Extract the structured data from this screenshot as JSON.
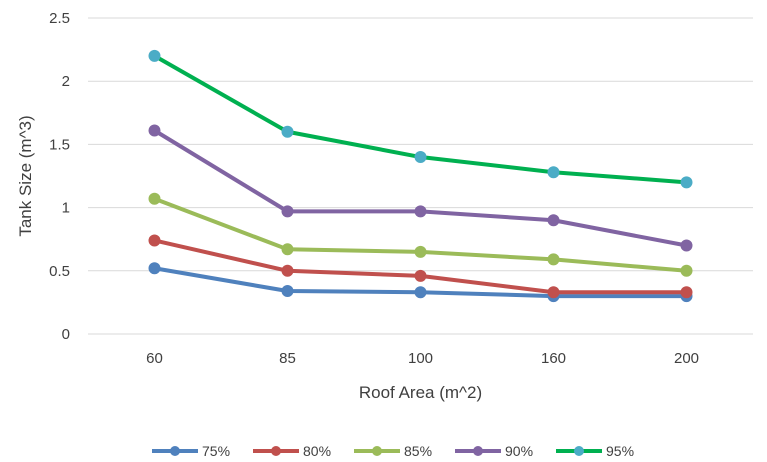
{
  "chart_data": {
    "type": "line",
    "title": "",
    "xlabel": "Roof Area (m^2)",
    "ylabel": "Tank Size (m^3)",
    "categories": [
      "60",
      "85",
      "100",
      "160",
      "200"
    ],
    "ylim": [
      0,
      2.5
    ],
    "yticks": [
      "0",
      "0.5",
      "1",
      "1.5",
      "2",
      "2.5"
    ],
    "grid": "horizontal",
    "legend_position": "bottom",
    "series": [
      {
        "name": "75%",
        "color": "#4f81bd",
        "values": [
          0.52,
          0.34,
          0.33,
          0.3,
          0.3
        ]
      },
      {
        "name": "80%",
        "color": "#c0504d",
        "values": [
          0.74,
          0.5,
          0.46,
          0.33,
          0.33
        ]
      },
      {
        "name": "85%",
        "color": "#9bbb59",
        "values": [
          1.07,
          0.67,
          0.65,
          0.59,
          0.5
        ]
      },
      {
        "name": "90%",
        "color": "#8064a2",
        "values": [
          1.61,
          0.97,
          0.97,
          0.9,
          0.7
        ]
      },
      {
        "name": "95%",
        "color": "#00b050",
        "marker_color": "#4bacc6",
        "values": [
          2.2,
          1.6,
          1.4,
          1.28,
          1.2
        ]
      }
    ]
  }
}
